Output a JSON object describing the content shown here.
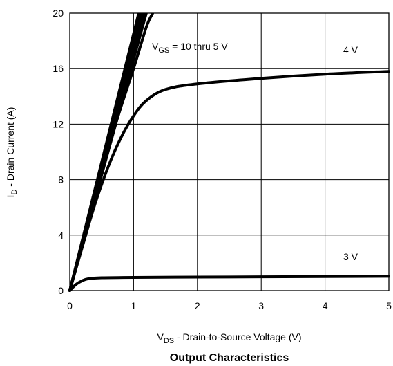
{
  "chart_data": {
    "type": "line",
    "title": "Output Characteristics",
    "xlabel": {
      "base": "V",
      "sub": "DS",
      "rest": " - Drain-to-Source Voltage (V)"
    },
    "ylabel": {
      "base": "I",
      "sub": "D",
      "rest": " - Drain Current (A)"
    },
    "xlim": [
      0,
      5
    ],
    "ylim": [
      0,
      20
    ],
    "xticks": [
      0,
      1,
      2,
      3,
      4,
      5
    ],
    "yticks": [
      0,
      4,
      8,
      12,
      16,
      20
    ],
    "xtick_labels": [
      "0",
      "1",
      "2",
      "3",
      "4",
      "5"
    ],
    "ytick_labels": [
      "0",
      "4",
      "8",
      "12",
      "16",
      "20"
    ],
    "grid": true,
    "annotations": {
      "vgs_group": {
        "base": "V",
        "sub": "GS",
        "rest": " = 10 thru 5 V"
      },
      "v4": "4 V",
      "v3": "3 V"
    },
    "series": [
      {
        "x": [
          0,
          1.08
        ],
        "y": [
          0,
          20
        ]
      },
      {
        "x": [
          0,
          1.11
        ],
        "y": [
          0,
          20
        ]
      },
      {
        "x": [
          0,
          1.14
        ],
        "y": [
          0,
          20
        ]
      },
      {
        "x": [
          0,
          1.17
        ],
        "y": [
          0,
          20
        ]
      },
      {
        "x": [
          0,
          1.2
        ],
        "y": [
          0,
          20
        ]
      },
      {
        "x": [
          0,
          0.2,
          0.4,
          0.6,
          0.8,
          1.0,
          1.2,
          1.3
        ],
        "y": [
          0,
          3.6,
          7.0,
          10.2,
          13.2,
          16.0,
          19.0,
          20.0
        ]
      },
      {
        "x": [
          0,
          0.2,
          0.4,
          0.6,
          0.8,
          1.0,
          1.2,
          1.5,
          2.0,
          3.0,
          4.0,
          5.0
        ],
        "y": [
          0,
          3.2,
          6.3,
          8.9,
          11.0,
          12.6,
          13.7,
          14.5,
          14.9,
          15.3,
          15.6,
          15.8
        ]
      },
      {
        "x": [
          0,
          0.1,
          0.2,
          0.3,
          0.5,
          1.0,
          2.0,
          3.0,
          4.0,
          5.0
        ],
        "y": [
          0,
          0.45,
          0.72,
          0.86,
          0.92,
          0.95,
          0.97,
          0.99,
          1.01,
          1.03
        ]
      }
    ]
  }
}
